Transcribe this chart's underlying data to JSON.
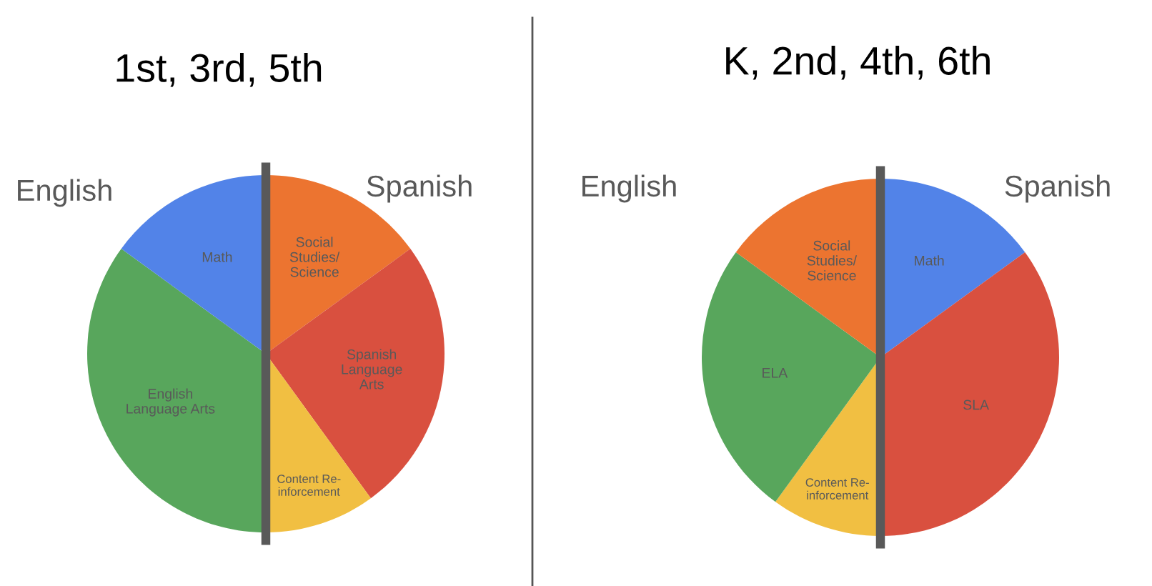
{
  "chart_data": [
    {
      "type": "pie",
      "title": "1st, 3rd, 5th",
      "categories": [
        "Social\nStudies/\nScience",
        "Spanish\nLanguage\nArts",
        "Content Re-\ninforcement",
        "English\nLanguage Arts",
        "Math"
      ],
      "values": [
        15,
        25,
        10,
        35,
        15
      ],
      "colors": [
        "#ec7430",
        "#d9503f",
        "#f1bf42",
        "#58a65c",
        "#5283e8"
      ],
      "annotations": [
        "English",
        "Spanish"
      ]
    },
    {
      "type": "pie",
      "title": "K, 2nd, 4th, 6th",
      "categories": [
        "Math",
        "SLA",
        "Content Re-\ninforcement",
        "ELA",
        "Social\nStudies/\nScience"
      ],
      "values": [
        15,
        35,
        10,
        25,
        15
      ],
      "colors": [
        "#5283e8",
        "#d9503f",
        "#f1bf42",
        "#58a65c",
        "#ec7430"
      ],
      "annotations": [
        "English",
        "Spanish"
      ]
    }
  ]
}
